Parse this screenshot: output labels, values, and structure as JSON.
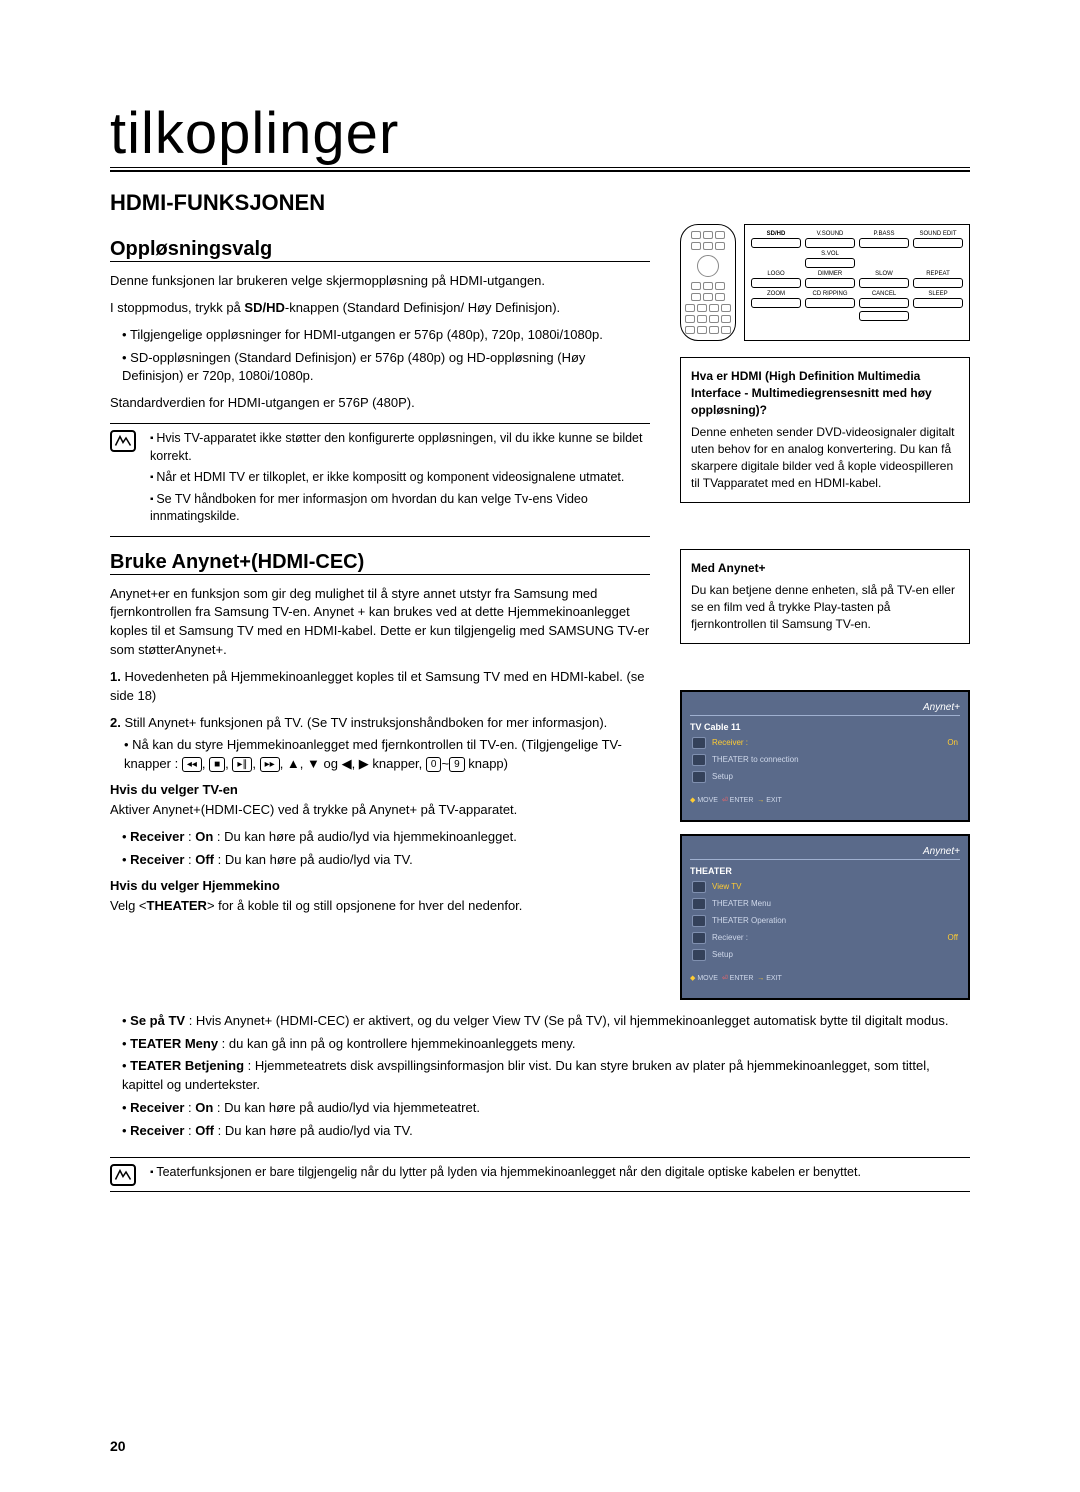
{
  "page": {
    "title": "tilkoplinger",
    "section1": "HDMI-FUNKSJONEN",
    "sub1": "Oppløsningsvalg",
    "p1": "Denne funksjonen lar brukeren velge skjermoppløsning på HDMI-utgangen.",
    "p2a": "I stoppmodus, trykk på ",
    "p2b": "SD/HD",
    "p2c": "-knappen (Standard Definisjon/ Høy Definisjon).",
    "b1": "Tilgjengelige oppløsninger for HDMI-utgangen er 576p (480p), 720p, 1080i/1080p.",
    "b2": "SD-oppløsningen (Standard Definisjon) er 576p (480p) og HD-oppløsning (Høy Definisjon) er 720p, 1080i/1080p.",
    "p3": "Standardverdien for HDMI-utgangen er 576P (480P).",
    "note1a": "Hvis TV-apparatet ikke støtter den konfigurerte oppløsningen, vil du ikke kunne se bildet korrekt.",
    "note1b": "Når et HDMI TV er tilkoplet, er ikke kompositt og komponent videosignalene utmatet.",
    "note1c": "Se TV håndboken for mer informasjon om hvordan du kan velge Tv-ens Video innmatingskilde.",
    "sub2": "Bruke Anynet+(HDMI-CEC)",
    "p4": " Anynet+er en funksjon som gir deg mulighet til å styre annet utstyr fra Samsung med fjernkontrollen fra Samsung TV-en. Anynet + kan brukes ved at dette Hjemmekinoanlegget koples til et Samsung TV med en HDMI-kabel. Dette er kun tilgjengelig med SAMSUNG TV-er som støtterAnynet+.",
    "n1": "Hovedenheten på Hjemmekinoanlegget koples til et Samsung TV med en HDMI-kabel. (se side 18)",
    "n2": "Still Anynet+ funksjonen på TV. (Se TV instruksjonshåndboken for mer informasjon).",
    "n2sub": "Nå kan du styre Hjemmekinoanlegget med fjernkontrollen til TV-en. (Tilgjengelige TV-knapper : ",
    "n2sub_end": " knapp)",
    "knapper": " knapper, ",
    "og": "og ",
    "tvsel_h": "Hvis du velger TV-en",
    "tvsel_p": "Aktiver Anynet+(HDMI-CEC) ved å trykke på Anynet+ på TV-apparatet.",
    "tvsel_b1a": "Receiver",
    "tvsel_b1b": " : ",
    "tvsel_b1c": "On",
    "tvsel_b1d": " : Du kan høre på audio/lyd via hjemmekinoanlegget.",
    "tvsel_b2c": "Off",
    "tvsel_b2d": " : Du kan høre på audio/lyd via TV.",
    "hjsel_h": "Hvis du velger Hjemmekino",
    "hjsel_p1": "Velg <",
    "hjsel_p1b": "THEATER",
    "hjsel_p1c": "> for å koble til og still opsjonene for hver del nedenfor.",
    "fb1a": "Se på TV",
    "fb1b": " : Hvis Anynet+ (HDMI-CEC) er aktivert, og du velger View TV (Se på TV), vil hjemmekinoanlegget automatisk bytte til digitalt modus.",
    "fb2a": "TEATER Meny",
    "fb2b": " : du kan gå inn på og kontrollere hjemmekinoanleggets meny.",
    "fb3a": "TEATER Betjening",
    "fb3b": " : Hjemmeteatrets disk avspillingsinformasjon blir vist. Du kan styre bruken av plater på hjemmekinoanlegget, som tittel, kapittel og undertekster.",
    "fb4a": "Receiver",
    "fb4b": "On",
    "fb4c": " : Du kan høre på audio/lyd via hjemmeteatret.",
    "fb5b": "Off",
    "fb5c": " : Du kan høre på audio/lyd via TV.",
    "note2": "Teaterfunksjonen er bare tilgjengelig når du lytter på lyden via hjemmekinoanlegget når den digitale optiske kabelen er benyttet.",
    "pagenum": "20"
  },
  "remote": {
    "r1": [
      "SD/HD",
      "V.SOUND",
      "P.BASS",
      "SOUND EDIT"
    ],
    "r1_center": "S.VOL",
    "r2": [
      "LOGO",
      "DIMMER",
      "SLOW",
      "REPEAT"
    ],
    "r3": [
      "ZOOM",
      "CD RIPPING",
      "CANCEL",
      "SLEEP"
    ]
  },
  "sidebox1": {
    "title": "Hva er HDMI (High Definition Multimedia Interface - Multimediegrensesnitt med høy oppløsning)?",
    "body": "Denne enheten sender DVD-videosignaler digitalt uten behov for en analog konvertering. Du kan få skarpere digitale bilder ved å kople videospilleren til TVapparatet med en HDMI-kabel."
  },
  "sidebox2": {
    "title": "Med Anynet+",
    "body": "Du kan betjene denne enheten, slå på TV-en eller se en film ved å trykke Play-tasten på fjernkontrollen til Samsung TV-en."
  },
  "tv1": {
    "brand": "Anynet+",
    "head": "TV Cable 11",
    "rows": [
      {
        "label": "Receiver :",
        "val": "On",
        "sel": true
      },
      {
        "label": "THEATER to connection",
        "val": ""
      },
      {
        "label": "Setup",
        "val": ""
      }
    ],
    "foot": "◆ MOVE  ⏎ ENTER  → EXIT"
  },
  "tv2": {
    "brand": "Anynet+",
    "head": "THEATER",
    "rows": [
      {
        "label": "View TV",
        "val": "",
        "sel": true
      },
      {
        "label": "THEATER Menu",
        "val": ""
      },
      {
        "label": "THEATER Operation",
        "val": ""
      },
      {
        "label": "Reciever :",
        "val": "Off"
      },
      {
        "label": "Setup",
        "val": ""
      }
    ],
    "foot": "◆ MOVE  ⏎ ENTER  → EXIT"
  }
}
